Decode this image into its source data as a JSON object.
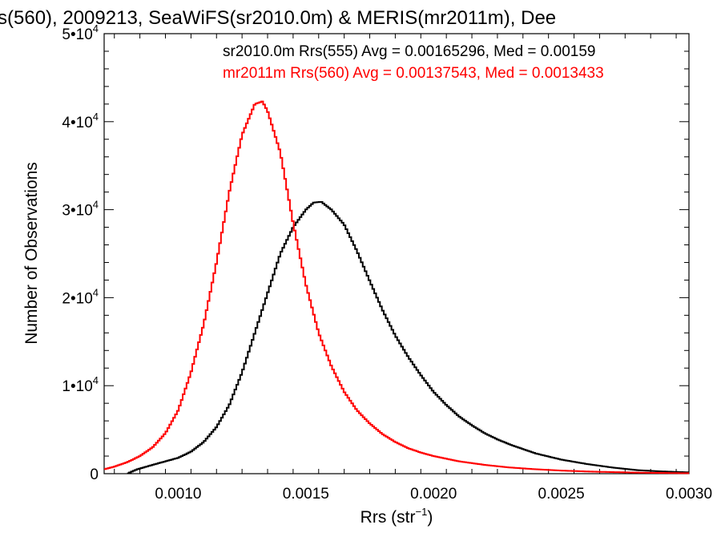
{
  "chart_data": {
    "type": "line",
    "title": "s(560), 2009213, SeaWiFS(sr2010.0m) & MERIS(mr2011m), Dee",
    "xlabel": "Rrs (str",
    "xlabel_sup": "−1",
    "xlabel_close": ")",
    "ylabel": "Number of Observations",
    "xlim": [
      0.00071,
      0.003
    ],
    "ylim": [
      0,
      50000
    ],
    "x_ticks": [
      {
        "value": 0.001,
        "label": "0.0010"
      },
      {
        "value": 0.0015,
        "label": "0.0015"
      },
      {
        "value": 0.002,
        "label": "0.0020"
      },
      {
        "value": 0.0025,
        "label": "0.0025"
      },
      {
        "value": 0.003,
        "label": "0.0030"
      }
    ],
    "y_ticks": [
      {
        "value": 0,
        "label": "0",
        "sup": ""
      },
      {
        "value": 10000,
        "label": "1•10",
        "sup": "4"
      },
      {
        "value": 20000,
        "label": "2•10",
        "sup": "4"
      },
      {
        "value": 30000,
        "label": "3•10",
        "sup": "4"
      },
      {
        "value": 40000,
        "label": "4•10",
        "sup": "4"
      },
      {
        "value": 50000,
        "label": "5•10",
        "sup": "4"
      }
    ],
    "series": [
      {
        "name": "sr2010.0m Rrs(555) Avg = 0.00165296, Med = 0.00159",
        "color": "#000000",
        "points": [
          [
            0.0008,
            0
          ],
          [
            0.00084,
            500
          ],
          [
            0.0009,
            1000
          ],
          [
            0.001,
            1800
          ],
          [
            0.00105,
            2500
          ],
          [
            0.0011,
            3600
          ],
          [
            0.00115,
            5300
          ],
          [
            0.0012,
            7800
          ],
          [
            0.00125,
            11500
          ],
          [
            0.0013,
            16000
          ],
          [
            0.00135,
            20500
          ],
          [
            0.0014,
            25000
          ],
          [
            0.00145,
            28000
          ],
          [
            0.0015,
            30000
          ],
          [
            0.00153,
            30800
          ],
          [
            0.00156,
            30900
          ],
          [
            0.0016,
            30000
          ],
          [
            0.00165,
            28300
          ],
          [
            0.0017,
            25300
          ],
          [
            0.00175,
            21900
          ],
          [
            0.0018,
            18600
          ],
          [
            0.00185,
            15700
          ],
          [
            0.0019,
            13300
          ],
          [
            0.00195,
            11200
          ],
          [
            0.002,
            9300
          ],
          [
            0.00205,
            7800
          ],
          [
            0.0021,
            6500
          ],
          [
            0.00215,
            5500
          ],
          [
            0.0022,
            4600
          ],
          [
            0.00225,
            3900
          ],
          [
            0.0023,
            3300
          ],
          [
            0.00235,
            2800
          ],
          [
            0.0024,
            2300
          ],
          [
            0.0025,
            1600
          ],
          [
            0.0026,
            1100
          ],
          [
            0.0027,
            700
          ],
          [
            0.0028,
            400
          ],
          [
            0.0029,
            250
          ],
          [
            0.003,
            150
          ]
        ]
      },
      {
        "name": "mr2011m Rrs(560) Avg = 0.00137543, Med = 0.0013433",
        "color": "#ff0000",
        "points": [
          [
            0.00071,
            500
          ],
          [
            0.00075,
            800
          ],
          [
            0.0008,
            1300
          ],
          [
            0.00085,
            2000
          ],
          [
            0.0009,
            3000
          ],
          [
            0.00095,
            4600
          ],
          [
            0.001,
            7200
          ],
          [
            0.00105,
            11500
          ],
          [
            0.0011,
            17000
          ],
          [
            0.00115,
            24000
          ],
          [
            0.0012,
            32000
          ],
          [
            0.00125,
            38500
          ],
          [
            0.0013,
            42000
          ],
          [
            0.00133,
            42300
          ],
          [
            0.00135,
            41200
          ],
          [
            0.0014,
            36500
          ],
          [
            0.00145,
            28500
          ],
          [
            0.0015,
            21500
          ],
          [
            0.00155,
            16000
          ],
          [
            0.0016,
            12200
          ],
          [
            0.00165,
            9300
          ],
          [
            0.0017,
            7200
          ],
          [
            0.00175,
            5700
          ],
          [
            0.0018,
            4500
          ],
          [
            0.00185,
            3600
          ],
          [
            0.0019,
            2900
          ],
          [
            0.00195,
            2400
          ],
          [
            0.002,
            2000
          ],
          [
            0.0021,
            1400
          ],
          [
            0.0022,
            1000
          ],
          [
            0.0023,
            700
          ],
          [
            0.0024,
            500
          ],
          [
            0.0025,
            350
          ],
          [
            0.0026,
            250
          ],
          [
            0.0027,
            180
          ],
          [
            0.0028,
            120
          ],
          [
            0.0029,
            80
          ],
          [
            0.003,
            50
          ]
        ]
      }
    ]
  }
}
